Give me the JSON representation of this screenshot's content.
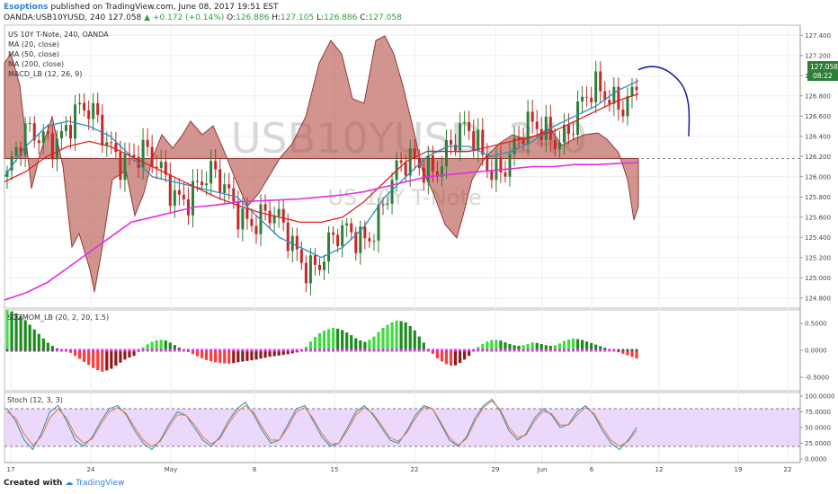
{
  "header": {
    "author": "Esoptions",
    "published": "published on TradingView.com, June 08, 2017 19:51 EST",
    "symbol": "OANDA:USB10YUSD, 240",
    "last": "127.058",
    "change": "▲ +0.172 (+0.14%)",
    "o_label": "O:",
    "o_val": "126.886",
    "h_label": "H:",
    "h_val": "127.105",
    "l_label": "L:",
    "l_val": "126.886",
    "c_label": "C:",
    "c_val": "127.058"
  },
  "legend": {
    "title": "US 10Y T-Note, 240, OANDA",
    "ma20": "MA (20, close)",
    "ma50": "MA (50, close)",
    "ma200": "MA (200, close)",
    "macd": "MACD_LB (12, 26, 9)",
    "sqz": "SQZMOM_LB (20, 2, 20, 1.5)",
    "stoch": "Stoch (12, 3, 3)"
  },
  "watermark": {
    "symbol": "USB10YUSD, 240",
    "name": "US 10Y T-Note"
  },
  "price_tag": {
    "price": "127.058",
    "time": "08:22"
  },
  "footer": {
    "created": "Created with",
    "brand": "TradingView"
  },
  "colors": {
    "candle_up": "#2d7f3a",
    "candle_down": "#c62828",
    "ma20": "#2a8fb8",
    "ma50": "#e02020",
    "ma200": "#e32ce3",
    "macd_fill": "#b7524a",
    "projection": "#1a1aa8",
    "stoch_band": "#e4c8f8"
  },
  "chart_data": [
    {
      "type": "candlestick",
      "title": "US 10Y T-Note, 240, OANDA",
      "x_ticks": [
        "17",
        "24",
        "May",
        "8",
        "15",
        "22",
        "29",
        "Jun",
        "6",
        "12",
        "19",
        "22"
      ],
      "y_ticks": [
        "124.800",
        "125.000",
        "125.200",
        "125.400",
        "125.600",
        "125.800",
        "126.000",
        "126.200",
        "126.400",
        "126.600",
        "126.800",
        "127.000",
        "127.200",
        "127.400"
      ],
      "ylim": [
        124.7,
        127.5
      ],
      "last_price": 127.058,
      "dashed_level": 126.18,
      "series": [
        {
          "name": "MA (20, close)",
          "values": [
            126.0,
            126.3,
            126.5,
            126.55,
            126.5,
            126.4,
            126.2,
            126.0,
            125.95,
            125.9,
            125.85,
            125.8,
            125.6,
            125.4,
            125.3,
            125.2,
            125.3,
            125.5,
            125.8,
            126.0,
            126.2,
            126.3,
            126.3,
            126.2,
            126.25,
            126.35,
            126.5,
            126.6,
            126.7,
            126.85,
            126.95
          ]
        },
        {
          "name": "MA (50, close)",
          "values": [
            125.95,
            126.05,
            126.2,
            126.3,
            126.35,
            126.3,
            126.2,
            126.1,
            126.0,
            125.9,
            125.8,
            125.72,
            125.65,
            125.6,
            125.55,
            125.55,
            125.6,
            125.75,
            125.95,
            126.15,
            126.25,
            126.25,
            126.25,
            126.3,
            126.35,
            126.4,
            126.45,
            126.55,
            126.65,
            126.75,
            126.82
          ]
        },
        {
          "name": "MA (200, close)",
          "values": [
            124.78,
            124.85,
            124.95,
            125.1,
            125.25,
            125.4,
            125.55,
            125.6,
            125.65,
            125.7,
            125.72,
            125.75,
            125.76,
            125.77,
            125.78,
            125.8,
            125.82,
            125.85,
            125.9,
            125.95,
            126.0,
            126.02,
            126.04,
            126.06,
            126.08,
            126.1,
            126.1,
            126.12,
            126.12,
            126.13,
            126.14
          ]
        }
      ],
      "projection": [
        127.058,
        127.12,
        127.1,
        126.95,
        126.4
      ]
    },
    {
      "type": "bar",
      "title": "SQZMOM_LB (20, 2, 20, 1.5)",
      "y_ticks": [
        "0.5000",
        "0.0000",
        "-0.5000"
      ],
      "ylim": [
        -0.75,
        0.75
      ],
      "values": [
        0.75,
        0.7,
        0.6,
        0.45,
        0.3,
        0.15,
        0.05,
        0.0,
        -0.05,
        -0.15,
        -0.25,
        -0.35,
        -0.4,
        -0.35,
        -0.25,
        -0.15,
        -0.1,
        0.05,
        0.15,
        0.2,
        0.18,
        0.1,
        0.02,
        -0.05,
        -0.12,
        -0.18,
        -0.22,
        -0.24,
        -0.25,
        -0.22,
        -0.2,
        -0.18,
        -0.15,
        -0.12,
        -0.1,
        -0.08,
        -0.05,
        -0.02,
        0.15,
        0.3,
        0.38,
        0.42,
        0.38,
        0.3,
        0.2,
        0.15,
        0.25,
        0.4,
        0.5,
        0.56,
        0.52,
        0.4,
        0.2,
        0.0,
        -0.15,
        -0.25,
        -0.3,
        -0.22,
        -0.1,
        0.05,
        0.15,
        0.2,
        0.18,
        0.12,
        0.08,
        0.1,
        0.15,
        0.12,
        0.08,
        0.1,
        0.18,
        0.22,
        0.2,
        0.15,
        0.1,
        0.05,
        0.0,
        -0.05,
        -0.1,
        -0.15
      ]
    },
    {
      "type": "line",
      "title": "Stoch (12, 3, 3)",
      "y_ticks": [
        "100.0000",
        "75.0000",
        "50.0000",
        "25.0000",
        "0.0000"
      ],
      "ylim": [
        0,
        100
      ],
      "band": [
        20,
        80
      ],
      "series": [
        {
          "name": "%K",
          "values": [
            80,
            60,
            30,
            15,
            40,
            75,
            85,
            60,
            30,
            20,
            35,
            60,
            80,
            85,
            70,
            45,
            25,
            15,
            30,
            55,
            75,
            70,
            50,
            30,
            20,
            35,
            60,
            80,
            90,
            70,
            45,
            25,
            30,
            55,
            80,
            85,
            60,
            35,
            20,
            25,
            50,
            75,
            85,
            70,
            50,
            30,
            25,
            45,
            70,
            85,
            80,
            55,
            30,
            20,
            35,
            65,
            85,
            95,
            75,
            45,
            30,
            40,
            65,
            80,
            70,
            50,
            55,
            75,
            85,
            70,
            45,
            25,
            15,
            30,
            50
          ]
        },
        {
          "name": "%D",
          "values": [
            75,
            65,
            40,
            22,
            35,
            65,
            80,
            65,
            38,
            25,
            32,
            55,
            75,
            82,
            72,
            50,
            30,
            20,
            28,
            50,
            70,
            70,
            55,
            35,
            24,
            32,
            55,
            75,
            85,
            74,
            50,
            30,
            30,
            50,
            75,
            82,
            64,
            40,
            24,
            25,
            45,
            70,
            82,
            72,
            54,
            34,
            28,
            42,
            65,
            82,
            80,
            58,
            34,
            22,
            32,
            60,
            82,
            92,
            78,
            50,
            34,
            38,
            60,
            76,
            72,
            54,
            54,
            70,
            82,
            72,
            50,
            30,
            20,
            28,
            45
          ]
        }
      ]
    }
  ]
}
